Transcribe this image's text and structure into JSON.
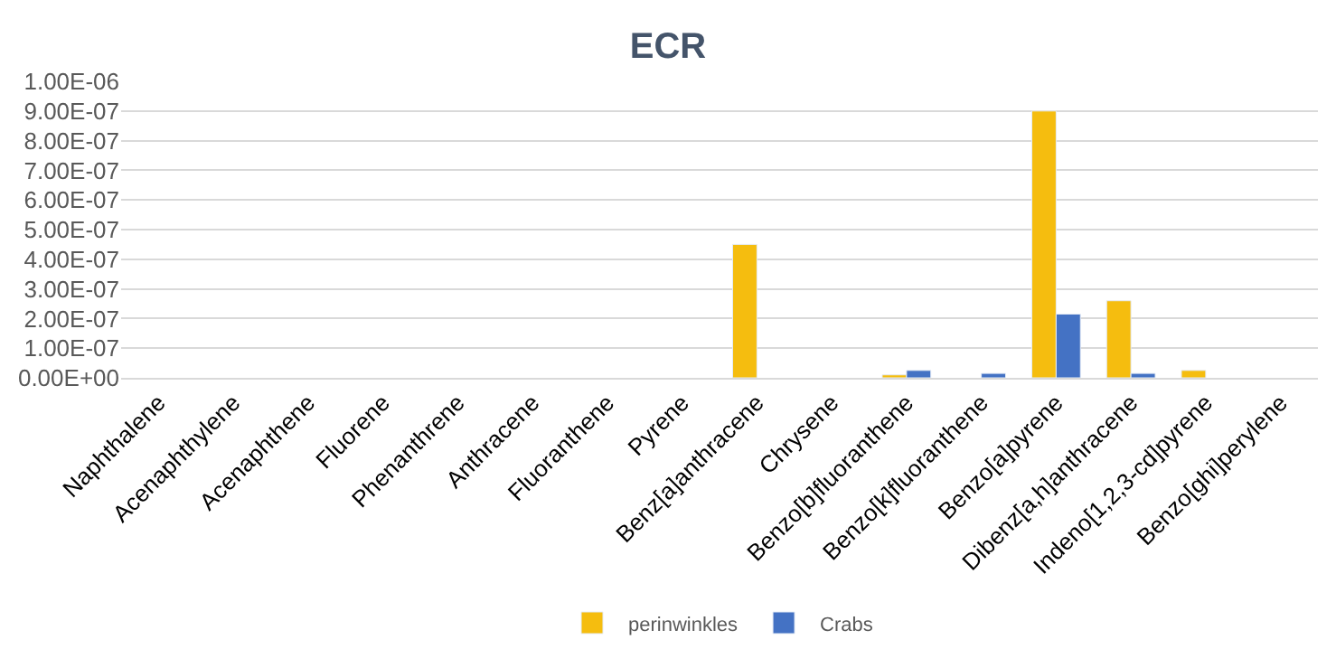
{
  "chart_data": {
    "type": "bar",
    "title": "ECR",
    "categories": [
      "Naphthalene",
      "Acenaphthylene",
      "Acenaphthene",
      "Fluorene",
      "Phenanthrene",
      "Anthracene",
      "Fluoranthene",
      "Pyrene",
      "Benz[a]anthracene",
      "Chrysene",
      "Benzo[b]fluoranthene",
      "Benzo[k]fluoranthene",
      "Benzo[a]pyrene",
      "Dibenz[a,h]anthracene",
      "Indeno[1,2,3-cd]pyrene",
      "Benzo[ghi]perylene"
    ],
    "series": [
      {
        "name": "perinwinkles",
        "color": "#f5bd0f",
        "values": [
          null,
          null,
          null,
          null,
          null,
          null,
          null,
          null,
          4.5e-07,
          null,
          1e-08,
          null,
          9e-07,
          2.6e-07,
          2.5e-08,
          null
        ]
      },
      {
        "name": "Crabs",
        "color": "#4472c4",
        "values": [
          null,
          null,
          null,
          null,
          null,
          null,
          null,
          null,
          null,
          null,
          2.5e-08,
          1.5e-08,
          2.15e-07,
          1.5e-08,
          null,
          null
        ]
      }
    ],
    "ylim": [
      0,
      1e-06
    ],
    "yticks": [
      {
        "value": 0,
        "label": "0.00E+00"
      },
      {
        "value": 1e-07,
        "label": "1.00E-07"
      },
      {
        "value": 2e-07,
        "label": "2.00E-07"
      },
      {
        "value": 3e-07,
        "label": "3.00E-07"
      },
      {
        "value": 4e-07,
        "label": "4.00E-07"
      },
      {
        "value": 5e-07,
        "label": "5.00E-07"
      },
      {
        "value": 6e-07,
        "label": "6.00E-07"
      },
      {
        "value": 7e-07,
        "label": "7.00E-07"
      },
      {
        "value": 8e-07,
        "label": "8.00E-07"
      },
      {
        "value": 9e-07,
        "label": "9.00E-07"
      },
      {
        "value": 1e-06,
        "label": "1.00E-06"
      }
    ],
    "grid": "y",
    "legend": "bottom"
  }
}
